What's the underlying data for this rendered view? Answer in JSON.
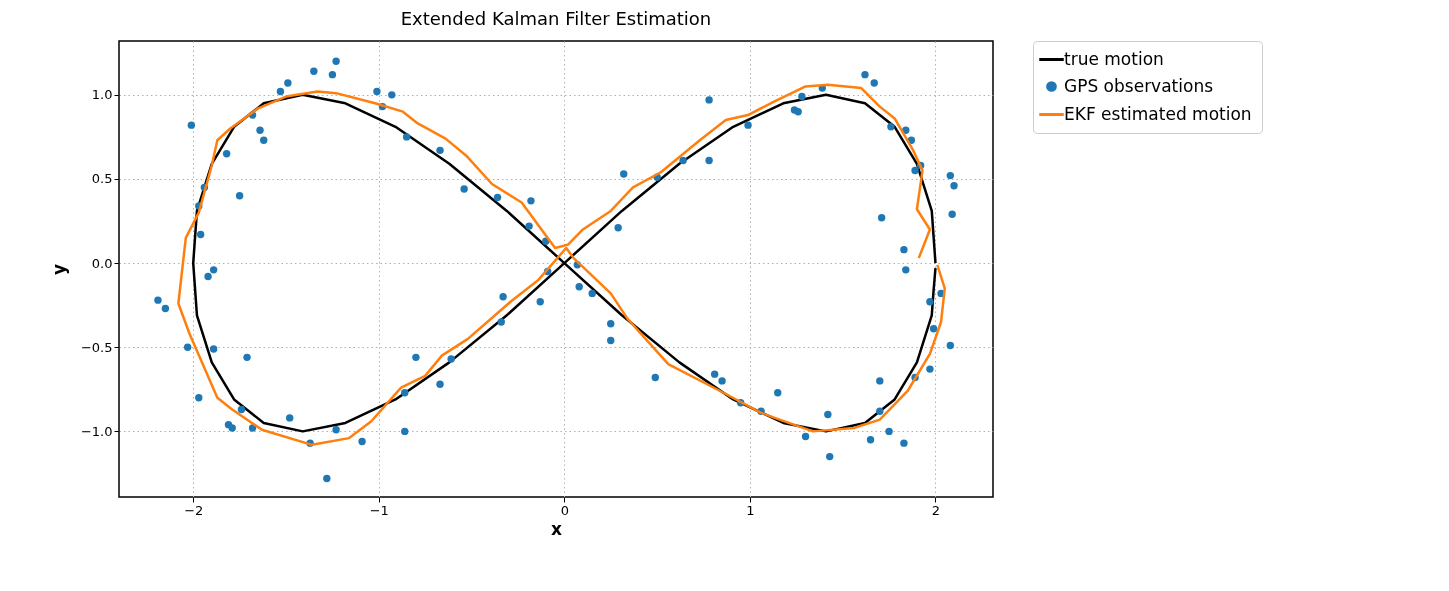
{
  "chart_data": {
    "type": "line",
    "title": "Extended Kalman Filter Estimation",
    "xlabel": "x",
    "ylabel": "y",
    "xlim": [
      -2.4,
      2.31
    ],
    "ylim": [
      -1.39,
      1.32
    ],
    "xticks": [
      {
        "value": -2,
        "label": "−2"
      },
      {
        "value": -1,
        "label": "−1"
      },
      0,
      1,
      2
    ],
    "yticks": [
      {
        "value": -1,
        "label": "−1.0"
      },
      {
        "value": -0.5,
        "label": "−0.5"
      },
      {
        "value": 0,
        "label": "0.0"
      },
      {
        "value": 0.5,
        "label": "0.5"
      },
      {
        "value": 1,
        "label": "1.0"
      }
    ],
    "grid": true,
    "legend": "top right",
    "series": [
      {
        "name": "true motion",
        "color": "#000000",
        "x": [
          2.0,
          1.98,
          1.9,
          1.78,
          1.62,
          1.41,
          1.18,
          0.91,
          0.62,
          0.31,
          0,
          -0.31,
          -0.62,
          -0.91,
          -1.18,
          -1.41,
          -1.62,
          -1.78,
          -1.9,
          -1.98,
          -2.0,
          -1.98,
          -1.9,
          -1.78,
          -1.62,
          -1.41,
          -1.18,
          -0.91,
          -0.62,
          -0.31,
          0,
          0.31,
          0.62,
          0.91,
          1.18,
          1.41,
          1.62,
          1.78,
          1.9,
          1.98,
          1.99,
          2.0
        ],
        "values": [
          0,
          0.31,
          0.59,
          0.81,
          0.95,
          1.0,
          0.95,
          0.81,
          0.59,
          0.31,
          0,
          -0.31,
          -0.59,
          -0.81,
          -0.95,
          -1.0,
          -0.95,
          -0.81,
          -0.59,
          -0.31,
          0,
          0.31,
          0.59,
          0.81,
          0.95,
          1.0,
          0.95,
          0.81,
          0.59,
          0.31,
          0,
          -0.31,
          -0.59,
          -0.81,
          -0.95,
          -1.0,
          -0.95,
          -0.81,
          -0.59,
          -0.31,
          -0.16,
          -0.03
        ]
      },
      {
        "name": "GPS observations",
        "type": "scatter",
        "marker": "circle",
        "color": "#1f77b4",
        "x": [
          -2.01,
          -2.19,
          -2.15,
          -2.03,
          -1.97,
          -1.97,
          -1.96,
          -1.94,
          -1.92,
          -1.89,
          -1.89,
          -1.82,
          -1.81,
          -1.79,
          -1.75,
          -1.74,
          -1.71,
          -1.68,
          -1.68,
          -1.64,
          -1.62,
          -1.53,
          -1.49,
          -1.48,
          -1.37,
          -1.35,
          -1.25,
          -1.23,
          -1.23,
          -1.28,
          -1.09,
          -1.01,
          -0.93,
          -0.98,
          -0.85,
          -0.86,
          -0.86,
          -0.8,
          -0.67,
          -0.67,
          -0.61,
          -0.34,
          -0.33,
          -0.13,
          -0.09,
          -0.54,
          -0.36,
          -0.18,
          -0.19,
          -0.1,
          0.78,
          0.32,
          0.29,
          0.5,
          0.64,
          0.78,
          0.99,
          1.24,
          1.26,
          1.28,
          1.39,
          1.62,
          1.67,
          1.76,
          1.84,
          1.87,
          1.89,
          1.92,
          2.08,
          2.1,
          2.09,
          1.71,
          1.83,
          1.84,
          2.03,
          1.97,
          1.99,
          2.08,
          1.97,
          1.89,
          1.7,
          1.7,
          1.75,
          1.83,
          1.65,
          1.43,
          1.42,
          1.3,
          1.15,
          1.06,
          0.95,
          0.81,
          0.85,
          0.49,
          0.25,
          0.25,
          0.15,
          0.08,
          0.07
        ],
        "values": [
          0.82,
          -0.22,
          -0.27,
          -0.5,
          -0.8,
          0.34,
          0.17,
          0.45,
          -0.08,
          -0.04,
          -0.51,
          0.65,
          -0.96,
          -0.98,
          0.4,
          -0.87,
          -0.56,
          0.88,
          -0.98,
          0.79,
          0.73,
          1.02,
          1.07,
          -0.92,
          -1.07,
          1.14,
          1.12,
          1.2,
          -0.99,
          -1.28,
          -1.06,
          1.02,
          1.0,
          0.93,
          0.75,
          -1.0,
          -0.77,
          -0.56,
          0.67,
          -0.72,
          -0.57,
          -0.35,
          -0.2,
          -0.23,
          -0.05,
          0.44,
          0.39,
          0.37,
          0.22,
          0.13,
          0.97,
          0.53,
          0.21,
          0.51,
          0.61,
          0.61,
          0.82,
          0.91,
          0.9,
          0.99,
          1.04,
          1.12,
          1.07,
          0.81,
          0.79,
          0.73,
          0.55,
          0.58,
          0.52,
          0.46,
          0.29,
          0.27,
          0.08,
          -0.04,
          -0.18,
          -0.23,
          -0.39,
          -0.49,
          -0.63,
          -0.68,
          -0.7,
          -0.88,
          -1.0,
          -1.07,
          -1.05,
          -1.15,
          -0.9,
          -1.03,
          -0.77,
          -0.88,
          -0.83,
          -0.66,
          -0.7,
          -0.68,
          -0.46,
          -0.36,
          -0.18,
          -0.14,
          -0.01
        ]
      },
      {
        "name": "EKF estimated motion",
        "color": "#ff7f0e",
        "x": [
          1.91,
          1.97,
          1.9,
          1.93,
          1.88,
          1.78,
          1.7,
          1.6,
          1.42,
          1.3,
          1.13,
          0.99,
          0.87,
          0.73,
          0.52,
          0.37,
          0.25,
          0.1,
          0.02,
          -0.05,
          -0.23,
          -0.39,
          -0.53,
          -0.64,
          -0.79,
          -0.87,
          -1.02,
          -1.23,
          -1.33,
          -1.5,
          -1.65,
          -1.8,
          -1.87,
          -1.9,
          -1.97,
          -2.04,
          -2.08,
          -2.02,
          -1.87,
          -1.79,
          -1.63,
          -1.36,
          -1.16,
          -1.04,
          -0.88,
          -0.75,
          -0.66,
          -0.52,
          -0.29,
          -0.14,
          0.01,
          0.05,
          0.25,
          0.34,
          0.56,
          0.84,
          1.06,
          1.16,
          1.34,
          1.56,
          1.7,
          1.85,
          1.97,
          2.03,
          2.05,
          2.01
        ],
        "values": [
          0.03,
          0.2,
          0.32,
          0.55,
          0.67,
          0.86,
          0.93,
          1.04,
          1.06,
          1.05,
          0.96,
          0.88,
          0.85,
          0.73,
          0.54,
          0.45,
          0.31,
          0.2,
          0.11,
          0.09,
          0.36,
          0.47,
          0.64,
          0.74,
          0.83,
          0.9,
          0.95,
          1.01,
          1.02,
          0.99,
          0.92,
          0.8,
          0.73,
          0.58,
          0.3,
          0.15,
          -0.24,
          -0.42,
          -0.8,
          -0.87,
          -0.99,
          -1.08,
          -1.04,
          -0.94,
          -0.74,
          -0.67,
          -0.55,
          -0.45,
          -0.23,
          -0.1,
          0.09,
          0.03,
          -0.18,
          -0.33,
          -0.6,
          -0.76,
          -0.89,
          -0.93,
          -1.0,
          -0.98,
          -0.93,
          -0.76,
          -0.54,
          -0.35,
          -0.15,
          -0.01
        ]
      }
    ]
  }
}
